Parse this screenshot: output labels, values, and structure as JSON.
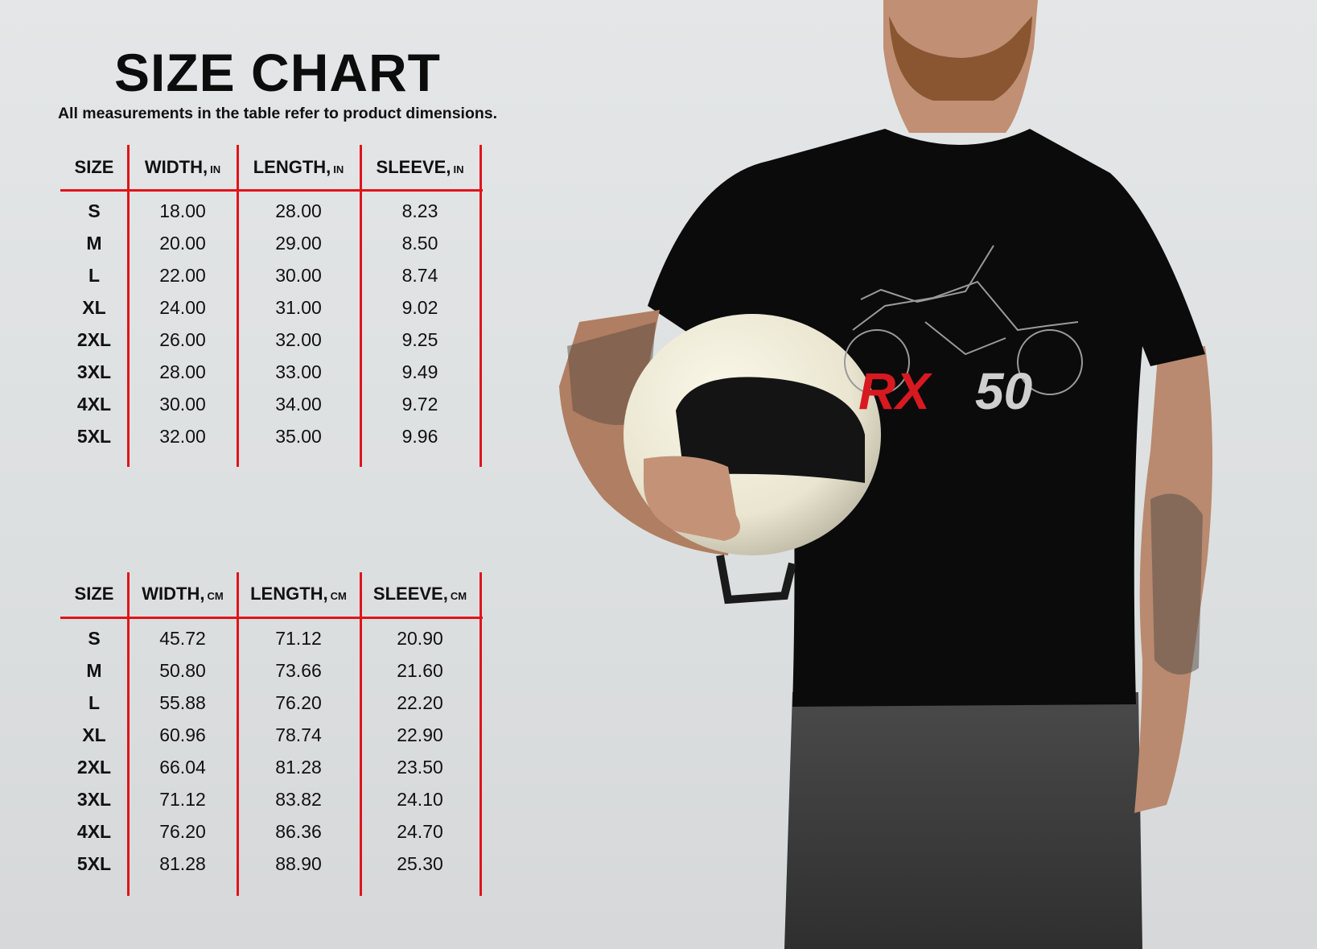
{
  "title": "SIZE CHART",
  "subtitle": "All measurements in the table refer to product dimensions.",
  "accent_color": "#e0141b",
  "tables": [
    {
      "headers": [
        {
          "label": "SIZE",
          "unit": ""
        },
        {
          "label": "WIDTH,",
          "unit": "IN"
        },
        {
          "label": "LENGTH,",
          "unit": "IN"
        },
        {
          "label": "SLEEVE,",
          "unit": "IN"
        }
      ],
      "rows": [
        [
          "S",
          "18.00",
          "28.00",
          "8.23"
        ],
        [
          "M",
          "20.00",
          "29.00",
          "8.50"
        ],
        [
          "L",
          "22.00",
          "30.00",
          "8.74"
        ],
        [
          "XL",
          "24.00",
          "31.00",
          "9.02"
        ],
        [
          "2XL",
          "26.00",
          "32.00",
          "9.25"
        ],
        [
          "3XL",
          "28.00",
          "33.00",
          "9.49"
        ],
        [
          "4XL",
          "30.00",
          "34.00",
          "9.72"
        ],
        [
          "5XL",
          "32.00",
          "35.00",
          "9.96"
        ]
      ]
    },
    {
      "headers": [
        {
          "label": "SIZE",
          "unit": ""
        },
        {
          "label": "WIDTH,",
          "unit": "CM"
        },
        {
          "label": "LENGTH,",
          "unit": "CM"
        },
        {
          "label": "SLEEVE,",
          "unit": "CM"
        }
      ],
      "rows": [
        [
          "S",
          "45.72",
          "71.12",
          "20.90"
        ],
        [
          "M",
          "50.80",
          "73.66",
          "21.60"
        ],
        [
          "L",
          "55.88",
          "76.20",
          "22.20"
        ],
        [
          "XL",
          "60.96",
          "78.74",
          "22.90"
        ],
        [
          "2XL",
          "66.04",
          "81.28",
          "23.50"
        ],
        [
          "3XL",
          "71.12",
          "83.82",
          "24.10"
        ],
        [
          "4XL",
          "76.20",
          "86.36",
          "24.70"
        ],
        [
          "5XL",
          "81.28",
          "88.90",
          "25.30"
        ]
      ]
    }
  ],
  "shirt_print": {
    "text_red": "RX",
    "text_gray": "50",
    "red": "#d71920",
    "gray": "#cfcfcf"
  }
}
